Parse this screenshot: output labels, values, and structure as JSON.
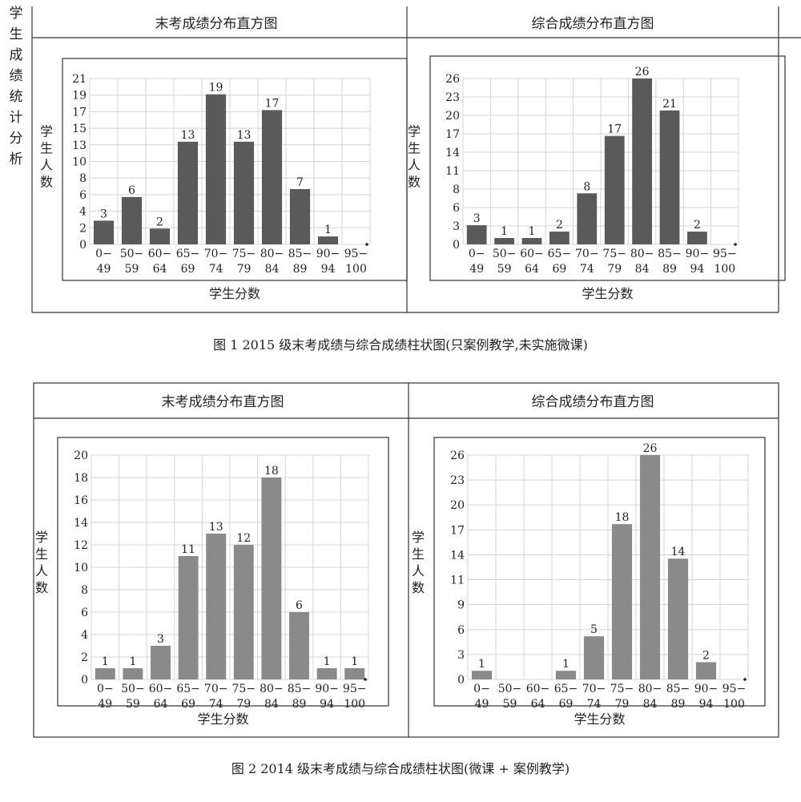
{
  "side_label": "学生成绩统计分析",
  "figures": [
    {
      "caption": "图 1  2015 级末考成绩与综合成绩柱状图(只案例教学,未实施微课)",
      "panels": [
        {
          "title": "末考成绩分布直方图",
          "ylabel": "学生人数",
          "xlabel": "学生分数"
        },
        {
          "title": "综合成绩分布直方图",
          "ylabel": "学生人数",
          "xlabel": "学生分数"
        }
      ]
    },
    {
      "caption": "图 2  2014 级末考成绩与综合成绩柱状图(微课 + 案例教学)",
      "panels": [
        {
          "title": "末考成绩分布直方图",
          "ylabel": "学生人数",
          "xlabel": "学生分数"
        },
        {
          "title": "综合成绩分布直方图",
          "ylabel": "学生人数",
          "xlabel": "学生分数"
        }
      ]
    }
  ],
  "chart_data": [
    {
      "type": "bar",
      "title": "末考成绩分布直方图",
      "xlabel": "学生分数",
      "ylabel": "学生人数",
      "categories": [
        "0-49",
        "50-59",
        "60-64",
        "65-69",
        "70-74",
        "75-79",
        "80-84",
        "85-89",
        "90-94",
        "95-100"
      ],
      "values": [
        3,
        6,
        2,
        13,
        19,
        13,
        17,
        7,
        1,
        0
      ],
      "data_labels": [
        "3",
        "6",
        "2",
        "13",
        "19",
        "13",
        "17",
        "7",
        "1",
        ""
      ],
      "yticks": [
        "0",
        "2",
        "4",
        "6",
        "8",
        "10",
        "13",
        "15",
        "17",
        "19",
        "21"
      ],
      "ylim": [
        0,
        21
      ],
      "bar_color": "#5a5a5a"
    },
    {
      "type": "bar",
      "title": "综合成绩分布直方图",
      "xlabel": "学生分数",
      "ylabel": "学生人数",
      "categories": [
        "0-49",
        "50-59",
        "60-64",
        "65-69",
        "70-74",
        "75-79",
        "80-84",
        "85-89",
        "90-94",
        "95-100"
      ],
      "values": [
        3,
        1,
        1,
        2,
        8,
        17,
        26,
        21,
        2,
        0
      ],
      "data_labels": [
        "3",
        "1",
        "1",
        "2",
        "8",
        "17",
        "26",
        "21",
        "2",
        ""
      ],
      "yticks": [
        "0",
        "3",
        "6",
        "8",
        "11",
        "14",
        "17",
        "20",
        "23",
        "26"
      ],
      "ylim": [
        0,
        26
      ],
      "bar_color": "#5a5a5a"
    },
    {
      "type": "bar",
      "title": "末考成绩分布直方图",
      "xlabel": "学生分数",
      "ylabel": "学生人数",
      "categories": [
        "0-49",
        "50-59",
        "60-64",
        "65-69",
        "70-74",
        "75-79",
        "80-84",
        "85-89",
        "90-94",
        "95-100"
      ],
      "values": [
        1,
        1,
        3,
        11,
        13,
        12,
        18,
        6,
        1,
        1
      ],
      "data_labels": [
        "1",
        "1",
        "3",
        "11",
        "13",
        "12",
        "18",
        "6",
        "1",
        "1"
      ],
      "yticks": [
        "0",
        "2",
        "4",
        "6",
        "8",
        "10",
        "12",
        "14",
        "16",
        "18",
        "20"
      ],
      "ylim": [
        0,
        20
      ],
      "bar_color": "#8a8a8a"
    },
    {
      "type": "bar",
      "title": "综合成绩分布直方图",
      "xlabel": "学生分数",
      "ylabel": "学生人数",
      "categories": [
        "0-49",
        "50-59",
        "60-64",
        "65-69",
        "70-74",
        "75-79",
        "80-84",
        "85-89",
        "90-94",
        "95-100"
      ],
      "values": [
        1,
        0,
        0,
        1,
        5,
        18,
        26,
        14,
        2,
        0
      ],
      "data_labels": [
        "1",
        "",
        "",
        "1",
        "5",
        "18",
        "26",
        "14",
        "2",
        ""
      ],
      "yticks": [
        "0",
        "3",
        "6",
        "9",
        "11",
        "14",
        "17",
        "20",
        "23",
        "26"
      ],
      "ylim": [
        0,
        26
      ],
      "bar_color": "#8a8a8a"
    }
  ]
}
